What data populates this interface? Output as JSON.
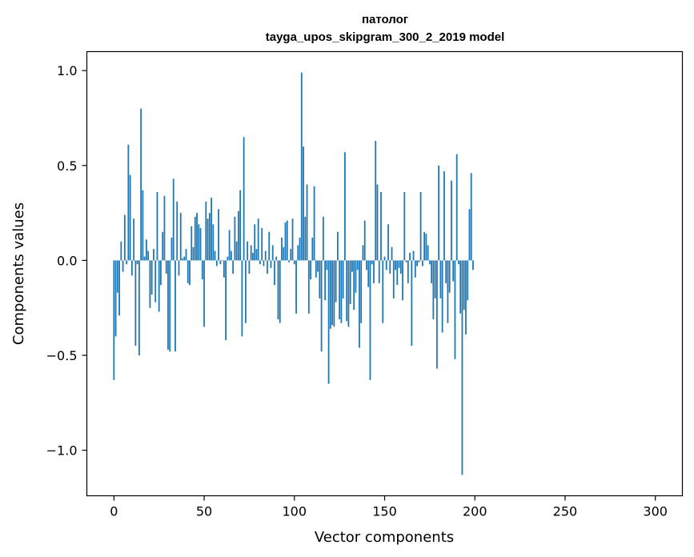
{
  "chart_data": {
    "type": "bar",
    "title": "патолог",
    "subtitle": "tayga_upos_skipgram_300_2_2019 model",
    "xlabel": "Vector components",
    "ylabel": "Components values",
    "xlim": [
      -15,
      315
    ],
    "ylim": [
      -1.24,
      1.1
    ],
    "xticks": [
      0,
      50,
      100,
      150,
      200,
      250,
      300
    ],
    "xtick_labels": [
      "0",
      "50",
      "100",
      "150",
      "200",
      "250",
      "300"
    ],
    "yticks": [
      -1.0,
      -0.5,
      0.0,
      0.5,
      1.0
    ],
    "ytick_labels": [
      "−1.0",
      "−0.5",
      "0.0",
      "0.5",
      "1.0"
    ],
    "bar_color": "#1f77b4",
    "grid": false,
    "series": [
      {
        "values": [
          -0.63,
          -0.4,
          -0.17,
          -0.29,
          0.1,
          -0.06,
          0.24,
          -0.02,
          0.61,
          0.45,
          -0.08,
          0.22,
          -0.45,
          -0.02,
          -0.5,
          0.8,
          0.37,
          0.02,
          0.11,
          0.05,
          -0.25,
          -0.18,
          0.06,
          -0.22,
          0.36,
          -0.27,
          -0.13,
          0.15,
          0.34,
          -0.07,
          -0.47,
          -0.48,
          0.12,
          0.43,
          -0.48,
          0.31,
          -0.08,
          0.25,
          0.01,
          0.02,
          0.06,
          -0.12,
          -0.13,
          0.18,
          0.07,
          0.23,
          0.25,
          0.19,
          0.17,
          -0.1,
          -0.35,
          0.31,
          0.22,
          0.25,
          0.33,
          0.19,
          0.05,
          -0.03,
          0.27,
          -0.02,
          0.0,
          -0.09,
          -0.42,
          0.02,
          0.16,
          0.05,
          -0.07,
          0.23,
          0.1,
          0.26,
          0.37,
          -0.4,
          0.65,
          -0.33,
          0.1,
          -0.07,
          0.08,
          0.04,
          0.19,
          0.06,
          0.22,
          -0.02,
          0.17,
          -0.03,
          0.05,
          -0.07,
          0.15,
          -0.04,
          0.08,
          -0.13,
          0.02,
          -0.31,
          -0.33,
          0.12,
          0.07,
          0.2,
          0.21,
          -0.01,
          0.06,
          0.22,
          -0.02,
          -0.28,
          0.08,
          0.12,
          0.99,
          0.6,
          0.23,
          0.4,
          -0.28,
          -0.1,
          0.12,
          0.39,
          -0.09,
          -0.06,
          -0.2,
          -0.48,
          0.23,
          -0.21,
          -0.05,
          -0.65,
          -0.36,
          -0.34,
          -0.35,
          -0.22,
          0.15,
          -0.31,
          -0.33,
          -0.2,
          0.57,
          -0.32,
          -0.35,
          -0.23,
          -0.06,
          -0.26,
          -0.17,
          -0.05,
          -0.46,
          -0.33,
          0.08,
          0.21,
          -0.05,
          -0.14,
          -0.63,
          -0.02,
          -0.12,
          0.63,
          0.4,
          -0.12,
          0.36,
          -0.33,
          0.02,
          -0.05,
          0.19,
          -0.07,
          0.07,
          -0.2,
          -0.05,
          -0.13,
          -0.04,
          -0.07,
          -0.21,
          0.36,
          -0.01,
          -0.12,
          0.04,
          -0.45,
          0.05,
          -0.09,
          -0.03,
          -0.01,
          0.36,
          -0.03,
          0.15,
          0.14,
          0.08,
          -0.02,
          -0.12,
          -0.31,
          -0.2,
          -0.57,
          0.5,
          -0.2,
          -0.38,
          0.47,
          -0.12,
          -0.33,
          -0.17,
          0.42,
          -0.11,
          -0.52,
          0.56,
          -0.02,
          -0.28,
          -1.13,
          -0.26,
          -0.39,
          -0.21,
          0.27,
          0.46,
          -0.05
        ]
      }
    ]
  }
}
